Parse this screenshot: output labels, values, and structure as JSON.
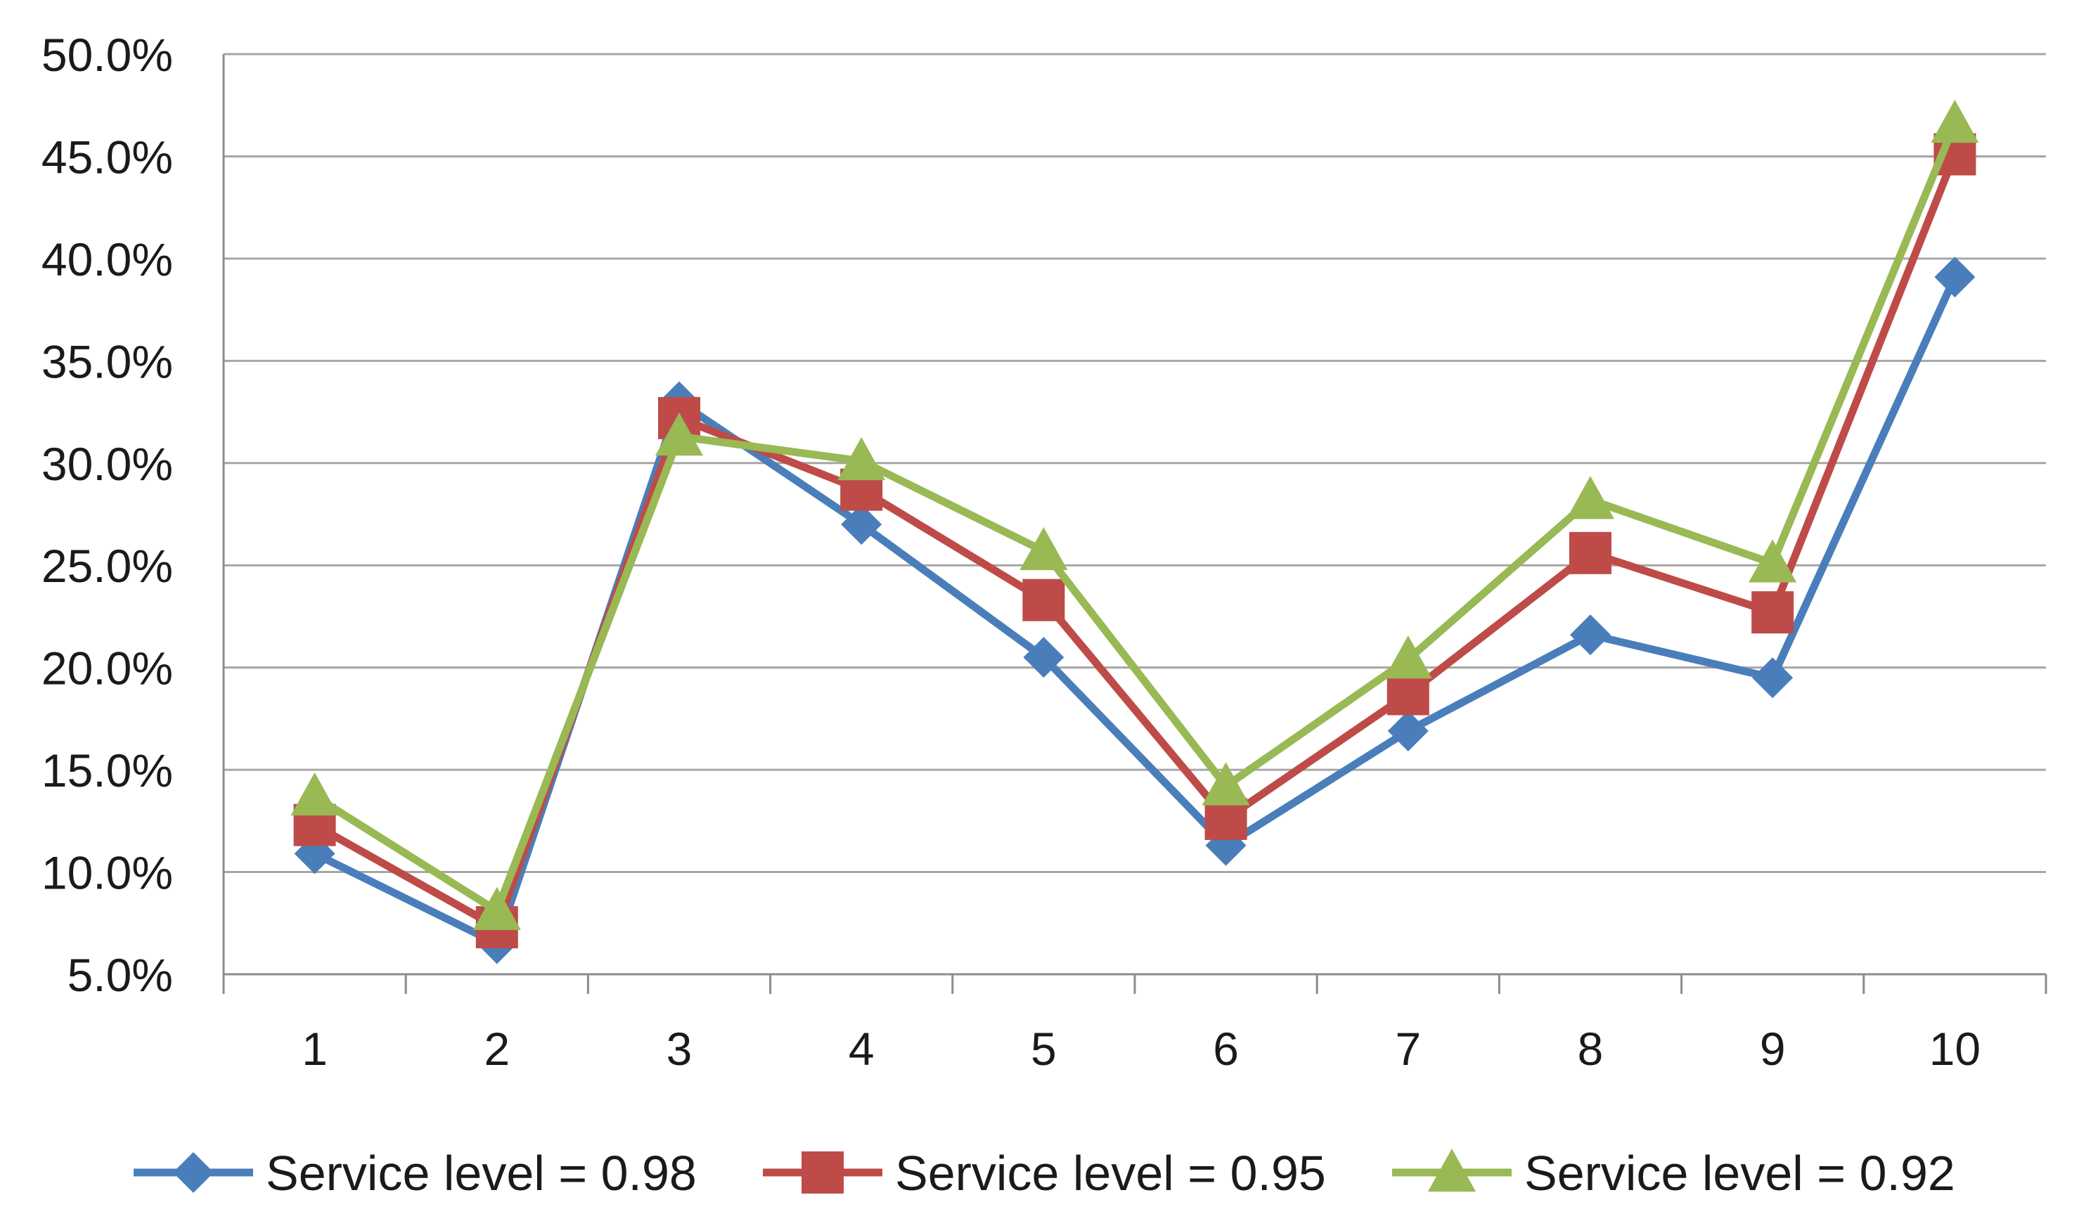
{
  "chart_data": {
    "type": "line",
    "title": "",
    "xlabel": "",
    "ylabel": "",
    "categories": [
      "1",
      "2",
      "3",
      "4",
      "5",
      "6",
      "7",
      "8",
      "9",
      "10"
    ],
    "ylim": [
      5.0,
      50.0
    ],
    "y_ticks": [
      5.0,
      10.0,
      15.0,
      20.0,
      25.0,
      30.0,
      35.0,
      40.0,
      45.0,
      50.0
    ],
    "y_tick_labels": [
      "5.0%",
      "10.0%",
      "15.0%",
      "20.0%",
      "25.0%",
      "30.0%",
      "35.0%",
      "40.0%",
      "45.0%",
      "50.0%"
    ],
    "grid": true,
    "legend_position": "bottom",
    "series": [
      {
        "name": "Service level = 0.98",
        "color": "#4a7ebb",
        "marker": "diamond",
        "values": [
          10.9,
          6.5,
          33.0,
          27.0,
          20.5,
          11.3,
          16.9,
          21.6,
          19.5,
          39.1
        ]
      },
      {
        "name": "Service level = 0.95",
        "color": "#be4b48",
        "marker": "square",
        "values": [
          12.3,
          7.3,
          32.2,
          28.7,
          23.3,
          12.6,
          18.7,
          25.6,
          22.7,
          45.1
        ]
      },
      {
        "name": "Service level = 0.92",
        "color": "#98b954",
        "marker": "triangle",
        "values": [
          13.7,
          8.1,
          31.3,
          30.1,
          25.7,
          14.2,
          20.4,
          28.2,
          25.1,
          46.6
        ]
      }
    ]
  }
}
